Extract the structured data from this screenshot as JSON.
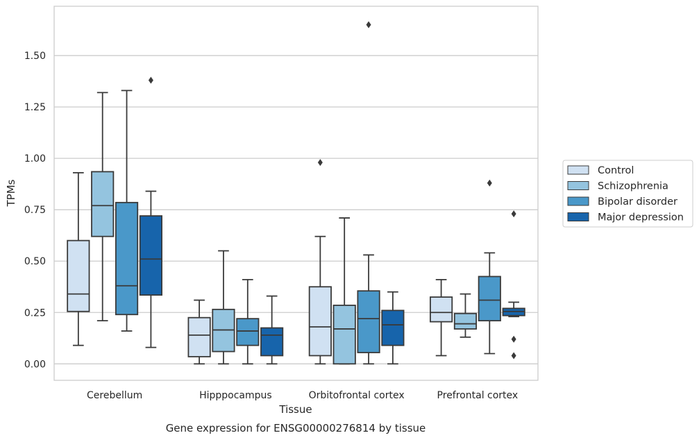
{
  "chart_data": {
    "type": "box",
    "title": "Gene expression for ENSG00000276814 by tissue",
    "xlabel": "Tissue",
    "ylabel": "TPMs",
    "ylim": [
      -0.08,
      1.74
    ],
    "yticks": [
      0.0,
      0.25,
      0.5,
      0.75,
      1.0,
      1.25,
      1.5
    ],
    "ytick_labels": [
      "0.00",
      "0.25",
      "0.50",
      "0.75",
      "1.00",
      "1.25",
      "1.50"
    ],
    "grid": true,
    "legend_position": "right",
    "categories": [
      "Cerebellum",
      "Hipppocampus",
      "Orbitofrontal cortex",
      "Prefrontal cortex"
    ],
    "series": [
      {
        "name": "Control",
        "color": "#d0e1f2",
        "boxes": [
          {
            "whislo": 0.09,
            "q1": 0.255,
            "med": 0.34,
            "q3": 0.6,
            "whishi": 0.93,
            "fliers": []
          },
          {
            "whislo": 0.0,
            "q1": 0.035,
            "med": 0.14,
            "q3": 0.225,
            "whishi": 0.31,
            "fliers": []
          },
          {
            "whislo": 0.0,
            "q1": 0.04,
            "med": 0.18,
            "q3": 0.375,
            "whishi": 0.62,
            "fliers": [
              0.98
            ]
          },
          {
            "whislo": 0.04,
            "q1": 0.205,
            "med": 0.25,
            "q3": 0.325,
            "whishi": 0.41,
            "fliers": []
          }
        ]
      },
      {
        "name": "Schizophrenia",
        "color": "#94c4df",
        "boxes": [
          {
            "whislo": 0.21,
            "q1": 0.62,
            "med": 0.77,
            "q3": 0.935,
            "whishi": 1.32,
            "fliers": []
          },
          {
            "whislo": 0.0,
            "q1": 0.06,
            "med": 0.165,
            "q3": 0.265,
            "whishi": 0.55,
            "fliers": []
          },
          {
            "whislo": 0.0,
            "q1": 0.0,
            "med": 0.17,
            "q3": 0.285,
            "whishi": 0.71,
            "fliers": []
          },
          {
            "whislo": 0.13,
            "q1": 0.17,
            "med": 0.195,
            "q3": 0.245,
            "whishi": 0.34,
            "fliers": []
          }
        ]
      },
      {
        "name": "Bipolar disorder",
        "color": "#4a98c9",
        "boxes": [
          {
            "whislo": 0.16,
            "q1": 0.24,
            "med": 0.38,
            "q3": 0.785,
            "whishi": 1.33,
            "fliers": []
          },
          {
            "whislo": 0.0,
            "q1": 0.09,
            "med": 0.16,
            "q3": 0.22,
            "whishi": 0.41,
            "fliers": []
          },
          {
            "whislo": 0.0,
            "q1": 0.055,
            "med": 0.22,
            "q3": 0.355,
            "whishi": 0.53,
            "fliers": [
              1.65
            ]
          },
          {
            "whislo": 0.05,
            "q1": 0.21,
            "med": 0.31,
            "q3": 0.425,
            "whishi": 0.54,
            "fliers": [
              0.88
            ]
          }
        ]
      },
      {
        "name": "Major depression",
        "color": "#1764ab",
        "boxes": [
          {
            "whislo": 0.08,
            "q1": 0.335,
            "med": 0.51,
            "q3": 0.72,
            "whishi": 0.84,
            "fliers": [
              1.38
            ]
          },
          {
            "whislo": 0.0,
            "q1": 0.04,
            "med": 0.14,
            "q3": 0.175,
            "whishi": 0.33,
            "fliers": []
          },
          {
            "whislo": 0.0,
            "q1": 0.09,
            "med": 0.19,
            "q3": 0.26,
            "whishi": 0.35,
            "fliers": []
          },
          {
            "whislo": 0.23,
            "q1": 0.235,
            "med": 0.255,
            "q3": 0.27,
            "whishi": 0.3,
            "fliers": [
              0.73,
              0.12,
              0.04
            ]
          }
        ]
      }
    ]
  }
}
